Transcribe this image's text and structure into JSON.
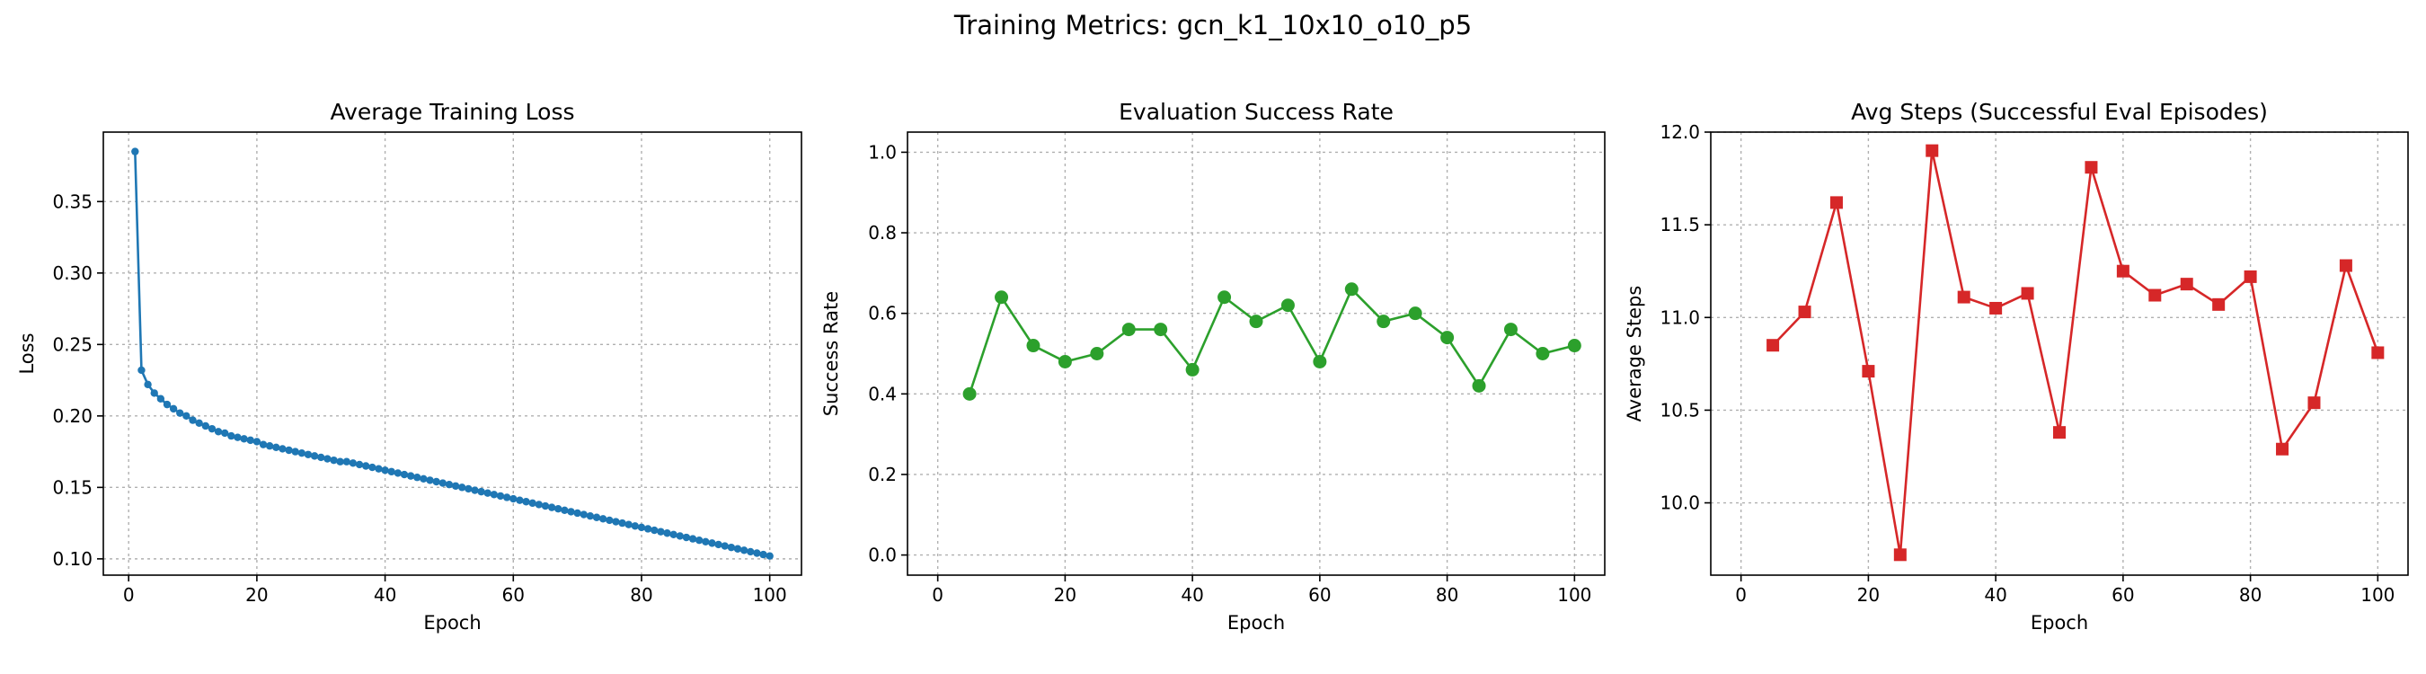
{
  "figure": {
    "suptitle": "Training Metrics: gcn_k1_10x10_o10_p5"
  },
  "chart_data": [
    {
      "type": "line",
      "title": "Average Training Loss",
      "xlabel": "Epoch",
      "ylabel": "Loss",
      "xlim": [
        -3.95,
        104.95
      ],
      "ylim": [
        0.0886,
        0.3986
      ],
      "xticks": [
        0,
        20,
        40,
        60,
        80,
        100
      ],
      "yticks": [
        0.1,
        0.15,
        0.2,
        0.25,
        0.3,
        0.35
      ],
      "ytick_labels": [
        "0.10",
        "0.15",
        "0.20",
        "0.25",
        "0.30",
        "0.35"
      ],
      "grid": true,
      "marker": "circle-small",
      "color": "#1f77b4",
      "series": [
        {
          "x": [
            1,
            2,
            3,
            4,
            5,
            6,
            7,
            8,
            9,
            10,
            11,
            12,
            13,
            14,
            15,
            16,
            17,
            18,
            19,
            20,
            21,
            22,
            23,
            24,
            25,
            26,
            27,
            28,
            29,
            30,
            31,
            32,
            33,
            34,
            35,
            36,
            37,
            38,
            39,
            40,
            41,
            42,
            43,
            44,
            45,
            46,
            47,
            48,
            49,
            50,
            51,
            52,
            53,
            54,
            55,
            56,
            57,
            58,
            59,
            60,
            61,
            62,
            63,
            64,
            65,
            66,
            67,
            68,
            69,
            70,
            71,
            72,
            73,
            74,
            75,
            76,
            77,
            78,
            79,
            80,
            81,
            82,
            83,
            84,
            85,
            86,
            87,
            88,
            89,
            90,
            91,
            92,
            93,
            94,
            95,
            96,
            97,
            98,
            99,
            100
          ],
          "values": [
            0.385,
            0.232,
            0.222,
            0.216,
            0.212,
            0.208,
            0.205,
            0.202,
            0.2,
            0.197,
            0.195,
            0.193,
            0.191,
            0.189,
            0.188,
            0.186,
            0.185,
            0.184,
            0.183,
            0.182,
            0.18,
            0.179,
            0.178,
            0.177,
            0.176,
            0.175,
            0.174,
            0.173,
            0.172,
            0.171,
            0.17,
            0.169,
            0.168,
            0.168,
            0.167,
            0.166,
            0.165,
            0.164,
            0.163,
            0.162,
            0.161,
            0.16,
            0.159,
            0.158,
            0.157,
            0.156,
            0.155,
            0.154,
            0.153,
            0.152,
            0.151,
            0.15,
            0.149,
            0.148,
            0.147,
            0.146,
            0.145,
            0.144,
            0.143,
            0.142,
            0.141,
            0.14,
            0.139,
            0.138,
            0.137,
            0.136,
            0.135,
            0.134,
            0.133,
            0.132,
            0.131,
            0.13,
            0.129,
            0.128,
            0.127,
            0.126,
            0.125,
            0.124,
            0.123,
            0.122,
            0.121,
            0.12,
            0.119,
            0.118,
            0.117,
            0.116,
            0.115,
            0.114,
            0.113,
            0.112,
            0.111,
            0.11,
            0.109,
            0.108,
            0.107,
            0.106,
            0.105,
            0.104,
            0.103,
            0.102
          ]
        }
      ]
    },
    {
      "type": "line",
      "title": "Evaluation Success Rate",
      "xlabel": "Epoch",
      "ylabel": "Success Rate",
      "xlim": [
        -4.75,
        104.75
      ],
      "ylim": [
        -0.05,
        1.05
      ],
      "xticks": [
        0,
        20,
        40,
        60,
        80,
        100
      ],
      "yticks": [
        0.0,
        0.2,
        0.4,
        0.6,
        0.8,
        1.0
      ],
      "ytick_labels": [
        "0.0",
        "0.2",
        "0.4",
        "0.6",
        "0.8",
        "1.0"
      ],
      "grid": true,
      "marker": "circle",
      "color": "#2ca02c",
      "series": [
        {
          "x": [
            5,
            10,
            15,
            20,
            25,
            30,
            35,
            40,
            45,
            50,
            55,
            60,
            65,
            70,
            75,
            80,
            85,
            90,
            95,
            100
          ],
          "values": [
            0.4,
            0.64,
            0.52,
            0.48,
            0.5,
            0.56,
            0.56,
            0.46,
            0.64,
            0.58,
            0.62,
            0.48,
            0.66,
            0.58,
            0.6,
            0.54,
            0.42,
            0.56,
            0.5,
            0.52
          ]
        }
      ]
    },
    {
      "type": "line",
      "title": "Avg Steps (Successful Eval Episodes)",
      "xlabel": "Epoch",
      "ylabel": "Average Steps",
      "xlim": [
        -4.75,
        104.75
      ],
      "ylim": [
        9.61,
        12.0
      ],
      "xticks": [
        0,
        20,
        40,
        60,
        80,
        100
      ],
      "yticks": [
        10.0,
        10.5,
        11.0,
        11.5,
        12.0
      ],
      "ytick_labels": [
        "10.0",
        "10.5",
        "11.0",
        "11.5",
        "12.0"
      ],
      "grid": true,
      "marker": "square",
      "color": "#d62728",
      "series": [
        {
          "x": [
            5,
            10,
            15,
            20,
            25,
            30,
            35,
            40,
            45,
            50,
            55,
            60,
            65,
            70,
            75,
            80,
            85,
            90,
            95,
            100
          ],
          "values": [
            10.85,
            11.03,
            11.62,
            10.71,
            9.72,
            11.9,
            11.11,
            11.05,
            11.13,
            10.38,
            11.81,
            11.25,
            11.12,
            11.18,
            11.07,
            11.22,
            10.29,
            10.54,
            11.28,
            10.81
          ]
        }
      ]
    }
  ]
}
